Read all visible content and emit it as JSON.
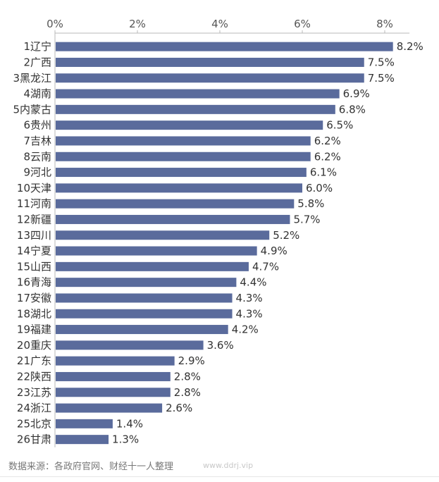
{
  "source_note": "数据来源：各政府官网、财经十一人整理",
  "watermark": "www.ddrj.vip",
  "colors": {
    "bar": "#5a6b9c",
    "axis": "#b8b8b8",
    "text": "#333333"
  },
  "chart_data": {
    "type": "bar",
    "orientation": "horizontal",
    "title": "",
    "xlabel": "",
    "ylabel": "",
    "xlim": [
      0,
      8.6
    ],
    "x_ticks": [
      "0%",
      "2%",
      "4%",
      "6%",
      "8%"
    ],
    "x_tick_values": [
      0,
      2,
      4,
      6,
      8
    ],
    "grid": false,
    "categories": [
      "1辽宁",
      "2广西",
      "3黑龙江",
      "4湖南",
      "5内蒙古",
      "6贵州",
      "7吉林",
      "8云南",
      "9河北",
      "10天津",
      "11河南",
      "12新疆",
      "13四川",
      "14宁夏",
      "15山西",
      "16青海",
      "17安徽",
      "18湖北",
      "19福建",
      "20重庆",
      "21广东",
      "22陕西",
      "23江苏",
      "24浙江",
      "25北京",
      "26甘肃"
    ],
    "values": [
      8.2,
      7.5,
      7.5,
      6.9,
      6.8,
      6.5,
      6.2,
      6.2,
      6.1,
      6.0,
      5.8,
      5.7,
      5.2,
      4.9,
      4.7,
      4.4,
      4.3,
      4.3,
      4.2,
      3.6,
      2.9,
      2.8,
      2.8,
      2.6,
      1.4,
      1.3
    ],
    "value_labels": [
      "8.2%",
      "7.5%",
      "7.5%",
      "6.9%",
      "6.8%",
      "6.5%",
      "6.2%",
      "6.2%",
      "6.1%",
      "6.0%",
      "5.8%",
      "5.7%",
      "5.2%",
      "4.9%",
      "4.7%",
      "4.4%",
      "4.3%",
      "4.3%",
      "4.2%",
      "3.6%",
      "2.9%",
      "2.8%",
      "2.8%",
      "2.6%",
      "1.4%",
      "1.3%"
    ]
  }
}
